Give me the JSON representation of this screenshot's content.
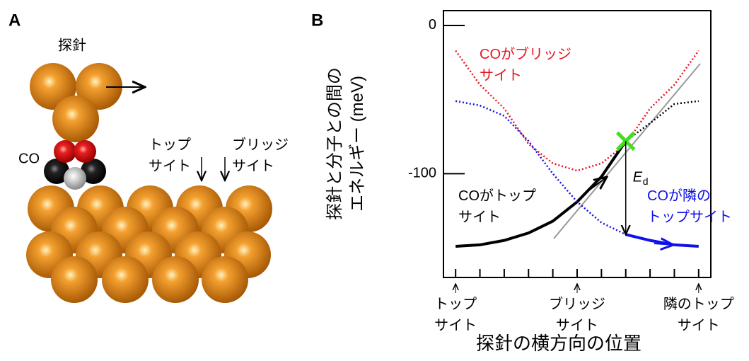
{
  "panel_a": {
    "label": "A",
    "tip_label": "探針",
    "co_label": "CO",
    "top_site_label": "トップ\nサイト",
    "bridge_site_label": "ブリッジ\nサイト"
  },
  "chart_data": {
    "type": "line",
    "panel_label": "B",
    "x_label": "探針の横方向の位置",
    "y_label": "探針と分子との間の\nエネルギー (meV)",
    "xlim": [
      -0.05,
      1.05
    ],
    "ylim": [
      -170,
      10
    ],
    "xticks": [
      {
        "value": 0,
        "label": "トップ\nサイト"
      },
      {
        "value": 0.5,
        "label": "ブリッジ\nサイト"
      },
      {
        "value": 1,
        "label": "隣のトップ\nサイト"
      }
    ],
    "x_minor_ticks": [
      0,
      0.1,
      0.2,
      0.3,
      0.4,
      0.5,
      0.6,
      0.7,
      0.8,
      0.9,
      1
    ],
    "yticks": [
      0,
      -100
    ],
    "series": [
      {
        "name": "COがブリッジ\nサイト",
        "color": "#e8141e",
        "line_style": "dotted",
        "x": [
          0,
          0.1,
          0.2,
          0.3,
          0.4,
          0.5,
          0.6,
          0.7,
          0.8,
          0.9,
          1
        ],
        "values": [
          -17,
          -40,
          -56,
          -80,
          -93,
          -98,
          -93,
          -80,
          -56,
          -40,
          -17
        ]
      },
      {
        "name": "COがトップ\nサイト",
        "color": "#000000",
        "line_style": "solid",
        "x": [
          0,
          0.1,
          0.2,
          0.3,
          0.4,
          0.5,
          0.6,
          0.7
        ],
        "values": [
          -149,
          -148,
          -145,
          -140,
          -132,
          -119,
          -102,
          -78
        ]
      },
      {
        "color": "#000000",
        "line_style": "dotted",
        "x": [
          0.7,
          0.8,
          0.9,
          1
        ],
        "values": [
          -78,
          -66,
          -53,
          -51
        ]
      },
      {
        "color": "#1010e8",
        "line_style": "dotted",
        "x": [
          0,
          0.1,
          0.2,
          0.3,
          0.4,
          0.5,
          0.6,
          0.7
        ],
        "values": [
          -51,
          -54,
          -61,
          -78,
          -100,
          -119,
          -133,
          -141
        ]
      },
      {
        "name": "COが隣の\nトップサイト",
        "color": "#1010e8",
        "line_style": "solid",
        "x": [
          0.7,
          0.8,
          0.9,
          1
        ],
        "values": [
          -141,
          -145,
          -148,
          -149
        ]
      }
    ],
    "crossing_point": {
      "x": 0.7,
      "value": -78,
      "color": "#44dd22"
    },
    "barrier": {
      "text": "E",
      "subscript": "d"
    }
  }
}
